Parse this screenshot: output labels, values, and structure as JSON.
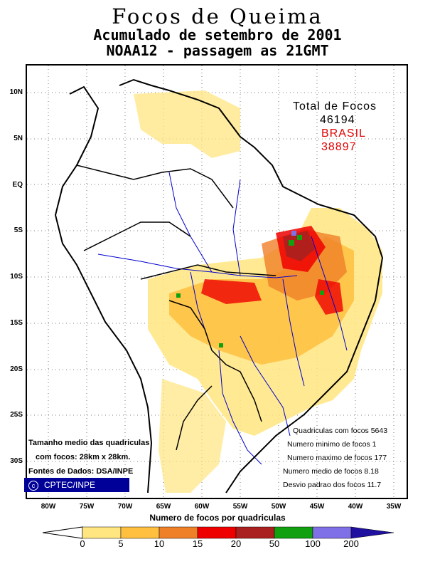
{
  "header": {
    "title": "Focos de Queima",
    "subtitle": "Acumulado de setembro de 2001",
    "pass": "NOAA12 - passagem as 21GMT"
  },
  "axes": {
    "lat_labels": [
      "10N",
      "5N",
      "EQ",
      "5S",
      "10S",
      "15S",
      "20S",
      "25S",
      "30S"
    ],
    "lon_labels": [
      "80W",
      "75W",
      "70W",
      "65W",
      "60W",
      "55W",
      "50W",
      "45W",
      "40W",
      "35W"
    ]
  },
  "totals": {
    "label": "Total de Focos",
    "total": "46194",
    "country": "BRASIL",
    "country_total": "38897"
  },
  "stats": {
    "cells": "Quadriculas com focos 5643",
    "min": "Numero minimo de focos 1",
    "max": "Numero maximo de focos 177",
    "mean": "Numero medio de focos 8.18",
    "std": "Desvio padrao dos focos 11.7"
  },
  "notes": {
    "line1": "Tamanho medio das quadriculas",
    "line2": "com focos: 28km x 28km.",
    "line3": "Fontes de Dados: DSA/INPE"
  },
  "logo": {
    "text": "CPTEC/INPE",
    "symbol": "c"
  },
  "legend": {
    "title": "Numero de focos por quadriculas",
    "breaks": [
      "0",
      "5",
      "10",
      "15",
      "20",
      "50",
      "100",
      "200"
    ],
    "colors": [
      "#ffe680",
      "#ffc040",
      "#f08028",
      "#ee0000",
      "#aa2020",
      "#10a010",
      "#8070e8",
      "#2010a0"
    ]
  },
  "colors": {
    "coast": "#000000",
    "rivers": "#0000cc",
    "grid": "#555555",
    "highlight": "#e00000"
  }
}
